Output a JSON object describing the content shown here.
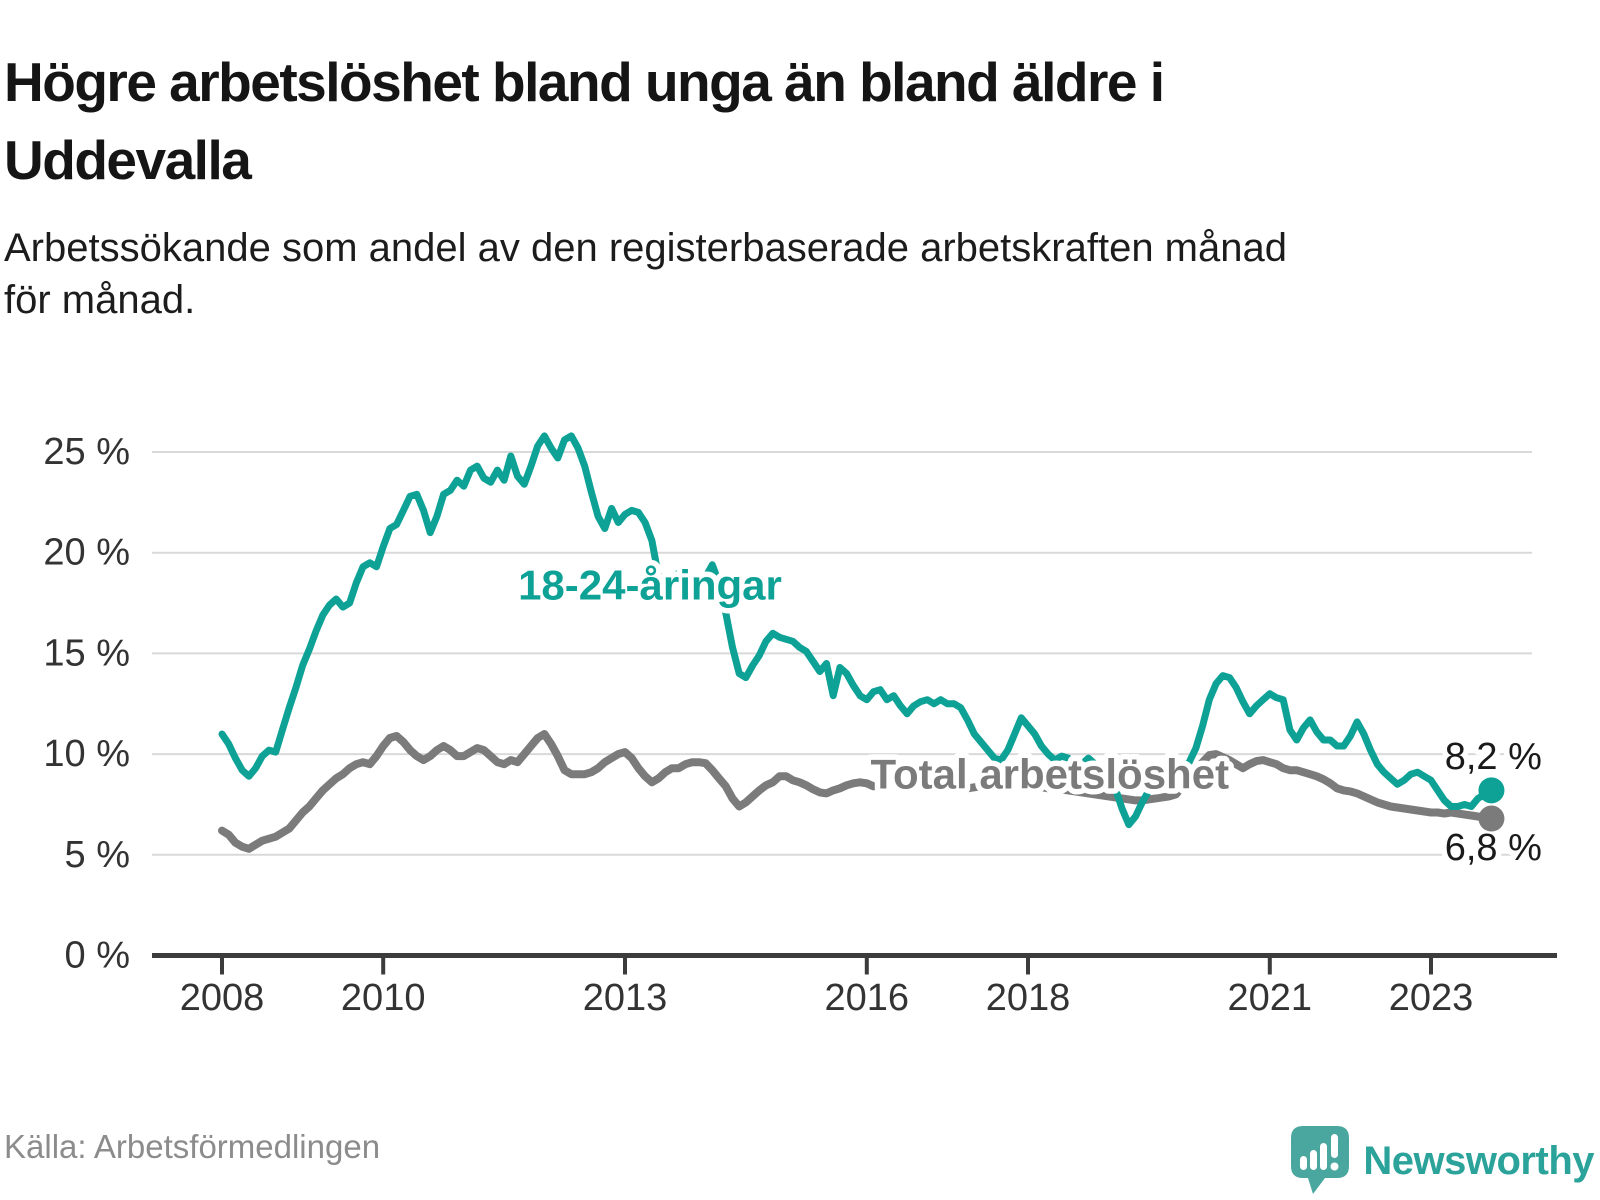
{
  "page": {
    "title_line1": "Högre arbetslöshet bland unga än bland äldre i",
    "title_line2": "Uddevalla",
    "subtitle_line1": "Arbetssökande som andel av den registerbaserade arbetskraften månad",
    "subtitle_line2": "för månad.",
    "source": "Källa: Arbetsförmedlingen",
    "brand": "Newsworthy"
  },
  "colors": {
    "youth": "#0ea296",
    "total": "#7b7b7b",
    "grid": "#d9d9d9",
    "axis": "#3c3c3c",
    "tick_text": "#333333",
    "value_text": "#1a1a1a",
    "brand_teal": "#2ba39a",
    "brand_pin": "#4aa79f"
  },
  "chart_data": {
    "type": "line",
    "title": "Högre arbetslöshet bland unga än bland äldre i Uddevalla",
    "subtitle": "Arbetssökande som andel av den registerbaserade arbetskraften månad för månad.",
    "x_start_year": 2008,
    "x_resolution": "monthly",
    "x_ticks": [
      2008,
      2010,
      2013,
      2016,
      2018,
      2021,
      2023
    ],
    "y_ticks": [
      0,
      5,
      10,
      15,
      20,
      25
    ],
    "y_tick_suffix": " %",
    "ylim": [
      0,
      27.5
    ],
    "grid": true,
    "legend": "inline-labels",
    "series": [
      {
        "name": "Total arbetslöshet",
        "color": "#7b7b7b",
        "end_value": 6.8,
        "end_value_label": "6,8 %",
        "values": [
          6.2,
          6.0,
          5.6,
          5.4,
          5.3,
          5.5,
          5.7,
          5.8,
          5.9,
          6.1,
          6.3,
          6.7,
          7.1,
          7.4,
          7.8,
          8.2,
          8.5,
          8.8,
          9.0,
          9.3,
          9.5,
          9.6,
          9.5,
          9.9,
          10.4,
          10.8,
          10.9,
          10.6,
          10.2,
          9.9,
          9.7,
          9.9,
          10.2,
          10.4,
          10.2,
          9.9,
          9.9,
          10.1,
          10.3,
          10.2,
          9.9,
          9.6,
          9.5,
          9.7,
          9.6,
          10.0,
          10.4,
          10.8,
          11.0,
          10.5,
          9.9,
          9.2,
          9.0,
          9.0,
          9.0,
          9.1,
          9.3,
          9.6,
          9.8,
          10.0,
          10.1,
          9.8,
          9.3,
          8.9,
          8.6,
          8.8,
          9.1,
          9.3,
          9.3,
          9.5,
          9.6,
          9.6,
          9.55,
          9.2,
          8.8,
          8.4,
          7.8,
          7.4,
          7.6,
          7.9,
          8.2,
          8.45,
          8.6,
          8.9,
          8.9,
          8.7,
          8.6,
          8.45,
          8.25,
          8.1,
          8.05,
          8.2,
          8.3,
          8.45,
          8.55,
          8.6,
          8.55,
          8.4,
          8.4,
          8.45,
          8.6,
          8.7,
          8.7,
          8.65,
          8.6,
          8.55,
          8.5,
          8.45,
          8.4,
          8.35,
          8.3,
          8.3,
          8.35,
          8.4,
          8.45,
          8.5,
          8.6,
          8.65,
          8.6,
          8.5,
          8.45,
          8.4,
          8.35,
          8.3,
          8.3,
          8.25,
          8.2,
          8.15,
          8.1,
          8.05,
          8.0,
          7.95,
          7.9,
          7.85,
          7.8,
          7.75,
          7.7,
          7.7,
          7.75,
          7.8,
          7.85,
          7.9,
          8.0,
          8.4,
          8.8,
          9.2,
          9.6,
          9.95,
          10.0,
          9.85,
          9.7,
          9.5,
          9.3,
          9.5,
          9.65,
          9.7,
          9.6,
          9.5,
          9.3,
          9.2,
          9.2,
          9.1,
          9.0,
          8.9,
          8.75,
          8.55,
          8.3,
          8.2,
          8.15,
          8.05,
          7.9,
          7.75,
          7.6,
          7.5,
          7.4,
          7.35,
          7.3,
          7.25,
          7.2,
          7.15,
          7.1,
          7.1,
          7.05,
          7.1,
          7.05,
          7.0,
          6.95,
          6.9,
          6.85,
          6.8
        ]
      },
      {
        "name": "18-24-åringar",
        "color": "#0ea296",
        "end_value": 8.2,
        "end_value_label": "8,2 %",
        "values": [
          11.0,
          10.5,
          9.8,
          9.2,
          8.9,
          9.3,
          9.9,
          10.2,
          10.1,
          11.2,
          12.3,
          13.3,
          14.4,
          15.2,
          16.1,
          16.9,
          17.4,
          17.7,
          17.3,
          17.5,
          18.5,
          19.3,
          19.5,
          19.3,
          20.3,
          21.2,
          21.4,
          22.1,
          22.8,
          22.9,
          22.1,
          21.0,
          21.8,
          22.9,
          23.1,
          23.6,
          23.3,
          24.1,
          24.3,
          23.7,
          23.5,
          24.1,
          23.6,
          24.8,
          23.8,
          23.4,
          24.3,
          25.3,
          25.8,
          25.2,
          24.7,
          25.6,
          25.8,
          25.2,
          24.3,
          23.0,
          21.8,
          21.2,
          22.2,
          21.5,
          21.9,
          22.1,
          22.0,
          21.5,
          20.6,
          18.8,
          18.3,
          18.6,
          19.0,
          19.1,
          18.7,
          18.4,
          18.8,
          19.4,
          18.5,
          17.0,
          15.3,
          14.0,
          13.8,
          14.4,
          14.9,
          15.6,
          16.0,
          15.8,
          15.7,
          15.6,
          15.3,
          15.1,
          14.6,
          14.1,
          14.5,
          12.9,
          14.3,
          14.0,
          13.4,
          12.9,
          12.7,
          13.1,
          13.2,
          12.7,
          12.9,
          12.4,
          12.0,
          12.4,
          12.6,
          12.7,
          12.5,
          12.7,
          12.5,
          12.5,
          12.3,
          11.7,
          11.0,
          10.6,
          10.2,
          9.8,
          9.7,
          10.2,
          11.0,
          11.8,
          11.4,
          11.0,
          10.4,
          10.0,
          9.7,
          9.9,
          9.8,
          9.3,
          9.5,
          9.8,
          9.5,
          9.3,
          9.0,
          8.3,
          7.3,
          6.5,
          6.9,
          7.6,
          8.2,
          8.6,
          8.9,
          9.1,
          9.2,
          9.3,
          9.6,
          10.3,
          11.4,
          12.7,
          13.5,
          13.9,
          13.8,
          13.3,
          12.6,
          12.0,
          12.4,
          12.7,
          13.0,
          12.8,
          12.7,
          11.2,
          10.7,
          11.3,
          11.7,
          11.1,
          10.7,
          10.7,
          10.4,
          10.4,
          10.9,
          11.6,
          11.0,
          10.2,
          9.5,
          9.1,
          8.8,
          8.5,
          8.7,
          9.0,
          9.1,
          8.9,
          8.7,
          8.2,
          7.7,
          7.4,
          7.4,
          7.5,
          7.4,
          7.8,
          8.0,
          8.2
        ]
      }
    ],
    "annotations": [
      {
        "id": "youth-series-label",
        "text": "18-24-åringar",
        "x": 2013.31,
        "y": 18.4,
        "anchor": "middle",
        "size": 42,
        "weight": 700,
        "color": "#0ea296"
      },
      {
        "id": "total-series-label",
        "text": "Total arbetslöshet",
        "x": 2018.27,
        "y": 9.0,
        "anchor": "middle",
        "size": 42,
        "weight": 700,
        "color": "#7b7b7b"
      },
      {
        "id": "youth-end-value",
        "text": "8,2 %",
        "x": 2023.17,
        "y": 9.85,
        "anchor": "start",
        "size": 38,
        "weight": 400,
        "color": "#1a1a1a"
      },
      {
        "id": "total-end-value",
        "text": "6,8 %",
        "x": 2023.17,
        "y": 5.35,
        "anchor": "start",
        "size": 38,
        "weight": 400,
        "color": "#1a1a1a"
      }
    ]
  }
}
